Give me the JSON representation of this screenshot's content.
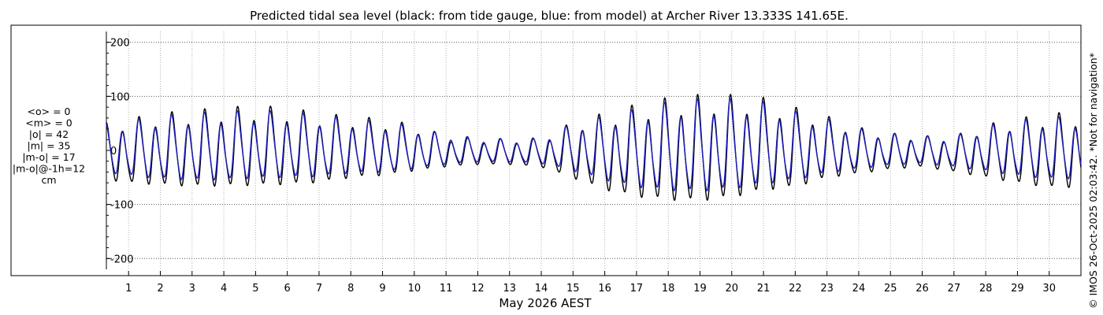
{
  "chart_data": {
    "type": "line",
    "title": "Predicted tidal sea level (black: from tide gauge, blue: from model) at Archer River 13.333S 141.65E.",
    "xlabel": "May 2026 AEST",
    "ylabel": "",
    "xlim": [
      0.3,
      31.0
    ],
    "ylim": [
      -220,
      220
    ],
    "yticks": [
      -200,
      -100,
      0,
      100,
      200
    ],
    "xticks": [
      1,
      2,
      3,
      4,
      5,
      6,
      7,
      8,
      9,
      10,
      11,
      12,
      13,
      14,
      15,
      16,
      17,
      18,
      19,
      20,
      21,
      22,
      23,
      24,
      25,
      26,
      27,
      28,
      29,
      30
    ],
    "grid": true,
    "series": [
      {
        "name": "from tide gauge",
        "color": "#000000",
        "daily_high": [
          45,
          55,
          65,
          70,
          75,
          78,
          75,
          65,
          60,
          55,
          45,
          25,
          20,
          20,
          20,
          50,
          65,
          80,
          92,
          97,
          97,
          92,
          75,
          60,
          40,
          30,
          25,
          25,
          45,
          55,
          65
        ],
        "daily_low": [
          -60,
          -70,
          -75,
          -78,
          -78,
          -77,
          -75,
          -70,
          -60,
          -55,
          -45,
          -35,
          -30,
          -30,
          -35,
          -60,
          -85,
          -100,
          -108,
          -110,
          -103,
          -88,
          -80,
          -60,
          -50,
          -40,
          -35,
          -45,
          -58,
          -70,
          -80
        ]
      },
      {
        "name": "from model",
        "color": "#1f1fbf",
        "daily_high": [
          43,
          52,
          60,
          65,
          68,
          70,
          68,
          62,
          55,
          50,
          42,
          28,
          22,
          20,
          22,
          48,
          60,
          72,
          85,
          90,
          90,
          85,
          68,
          55,
          38,
          30,
          25,
          25,
          42,
          52,
          58
        ],
        "daily_low": [
          -45,
          -55,
          -62,
          -65,
          -65,
          -62,
          -60,
          -58,
          -50,
          -48,
          -40,
          -30,
          -25,
          -25,
          -28,
          -45,
          -65,
          -80,
          -88,
          -90,
          -85,
          -75,
          -65,
          -50,
          -40,
          -32,
          -28,
          -35,
          -45,
          -55,
          -62
        ]
      }
    ]
  },
  "stats": {
    "lines": [
      "<o> = 0",
      "<m> = 0",
      "|o| = 42",
      "|m| = 35",
      "|m-o| = 17",
      "|m-o|@-1h=12",
      "cm"
    ]
  },
  "copyright": "© IMOS 26-Oct-2025 02:03:42. *Not for navigation*",
  "colors": {
    "axis": "#000000",
    "grid": "#b0b0b0",
    "gauge": "#000000",
    "model": "#1f1fbf"
  }
}
